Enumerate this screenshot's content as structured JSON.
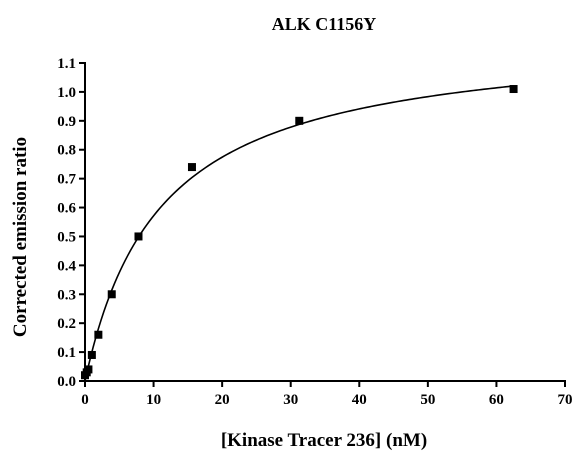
{
  "chart_data": {
    "type": "scatter",
    "title": "ALK C1156Y",
    "xlabel": "[Kinase Tracer 236] (nM)",
    "ylabel": "Corrected emission ratio",
    "xlim": [
      0,
      70
    ],
    "ylim": [
      0.0,
      1.1
    ],
    "xticks": [
      "0",
      "10",
      "20",
      "30",
      "40",
      "50",
      "60",
      "70"
    ],
    "yticks": [
      "0.0",
      "0.1",
      "0.2",
      "0.3",
      "0.4",
      "0.5",
      "0.6",
      "0.7",
      "0.8",
      "0.9",
      "1.0",
      "1.1"
    ],
    "grid": false,
    "points": [
      {
        "x": 0.0,
        "y": 0.02
      },
      {
        "x": 0.25,
        "y": 0.03
      },
      {
        "x": 0.5,
        "y": 0.04
      },
      {
        "x": 1.0,
        "y": 0.09
      },
      {
        "x": 1.95,
        "y": 0.16
      },
      {
        "x": 3.9,
        "y": 0.3
      },
      {
        "x": 7.8,
        "y": 0.5
      },
      {
        "x": 15.6,
        "y": 0.74
      },
      {
        "x": 31.25,
        "y": 0.9
      },
      {
        "x": 62.5,
        "y": 1.01
      }
    ],
    "fit": {
      "model": "one-site binding",
      "bmax": 1.2,
      "kd": 11.0,
      "x_end": 62.5
    },
    "colors": {
      "marker": "#000000",
      "line": "#000000",
      "axis": "#000000"
    }
  }
}
